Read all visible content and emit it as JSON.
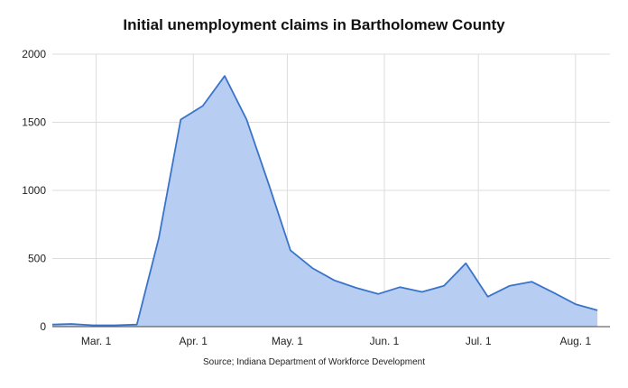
{
  "chart_data": {
    "type": "area",
    "title": "Initial unemployment claims in Bartholomew County",
    "source": "Source; Indiana Department of Workforce Development",
    "xlabel": "",
    "ylabel": "",
    "x_range": [
      "2020-02-16",
      "2020-08-12"
    ],
    "ylim": [
      0,
      2000
    ],
    "y_ticks": [
      0,
      500,
      1000,
      1500,
      2000
    ],
    "x_ticks": [
      {
        "label": "Mar. 1",
        "date": "2020-03-01"
      },
      {
        "label": "Apr. 1",
        "date": "2020-04-01"
      },
      {
        "label": "May. 1",
        "date": "2020-05-01"
      },
      {
        "label": "Jun. 1",
        "date": "2020-06-01"
      },
      {
        "label": "Jul. 1",
        "date": "2020-07-01"
      },
      {
        "label": "Aug. 1",
        "date": "2020-08-01"
      }
    ],
    "grid": true,
    "legend": "none",
    "colors": {
      "line": "#3a74c9",
      "fill": "#b8cdf2",
      "grid": "#dcdcdc"
    },
    "series": [
      {
        "dates": [
          "2020-02-16",
          "2020-02-22",
          "2020-02-29",
          "2020-03-07",
          "2020-03-14",
          "2020-03-21",
          "2020-03-28",
          "2020-04-04",
          "2020-04-11",
          "2020-04-18",
          "2020-04-25",
          "2020-05-02",
          "2020-05-09",
          "2020-05-16",
          "2020-05-23",
          "2020-05-30",
          "2020-06-06",
          "2020-06-13",
          "2020-06-20",
          "2020-06-27",
          "2020-07-04",
          "2020-07-11",
          "2020-07-18",
          "2020-07-25",
          "2020-08-01",
          "2020-08-08"
        ],
        "values": [
          15,
          20,
          10,
          10,
          15,
          650,
          1520,
          1620,
          1840,
          1520,
          1050,
          560,
          430,
          340,
          285,
          240,
          290,
          255,
          300,
          465,
          220,
          300,
          330,
          250,
          165,
          120
        ]
      }
    ]
  }
}
